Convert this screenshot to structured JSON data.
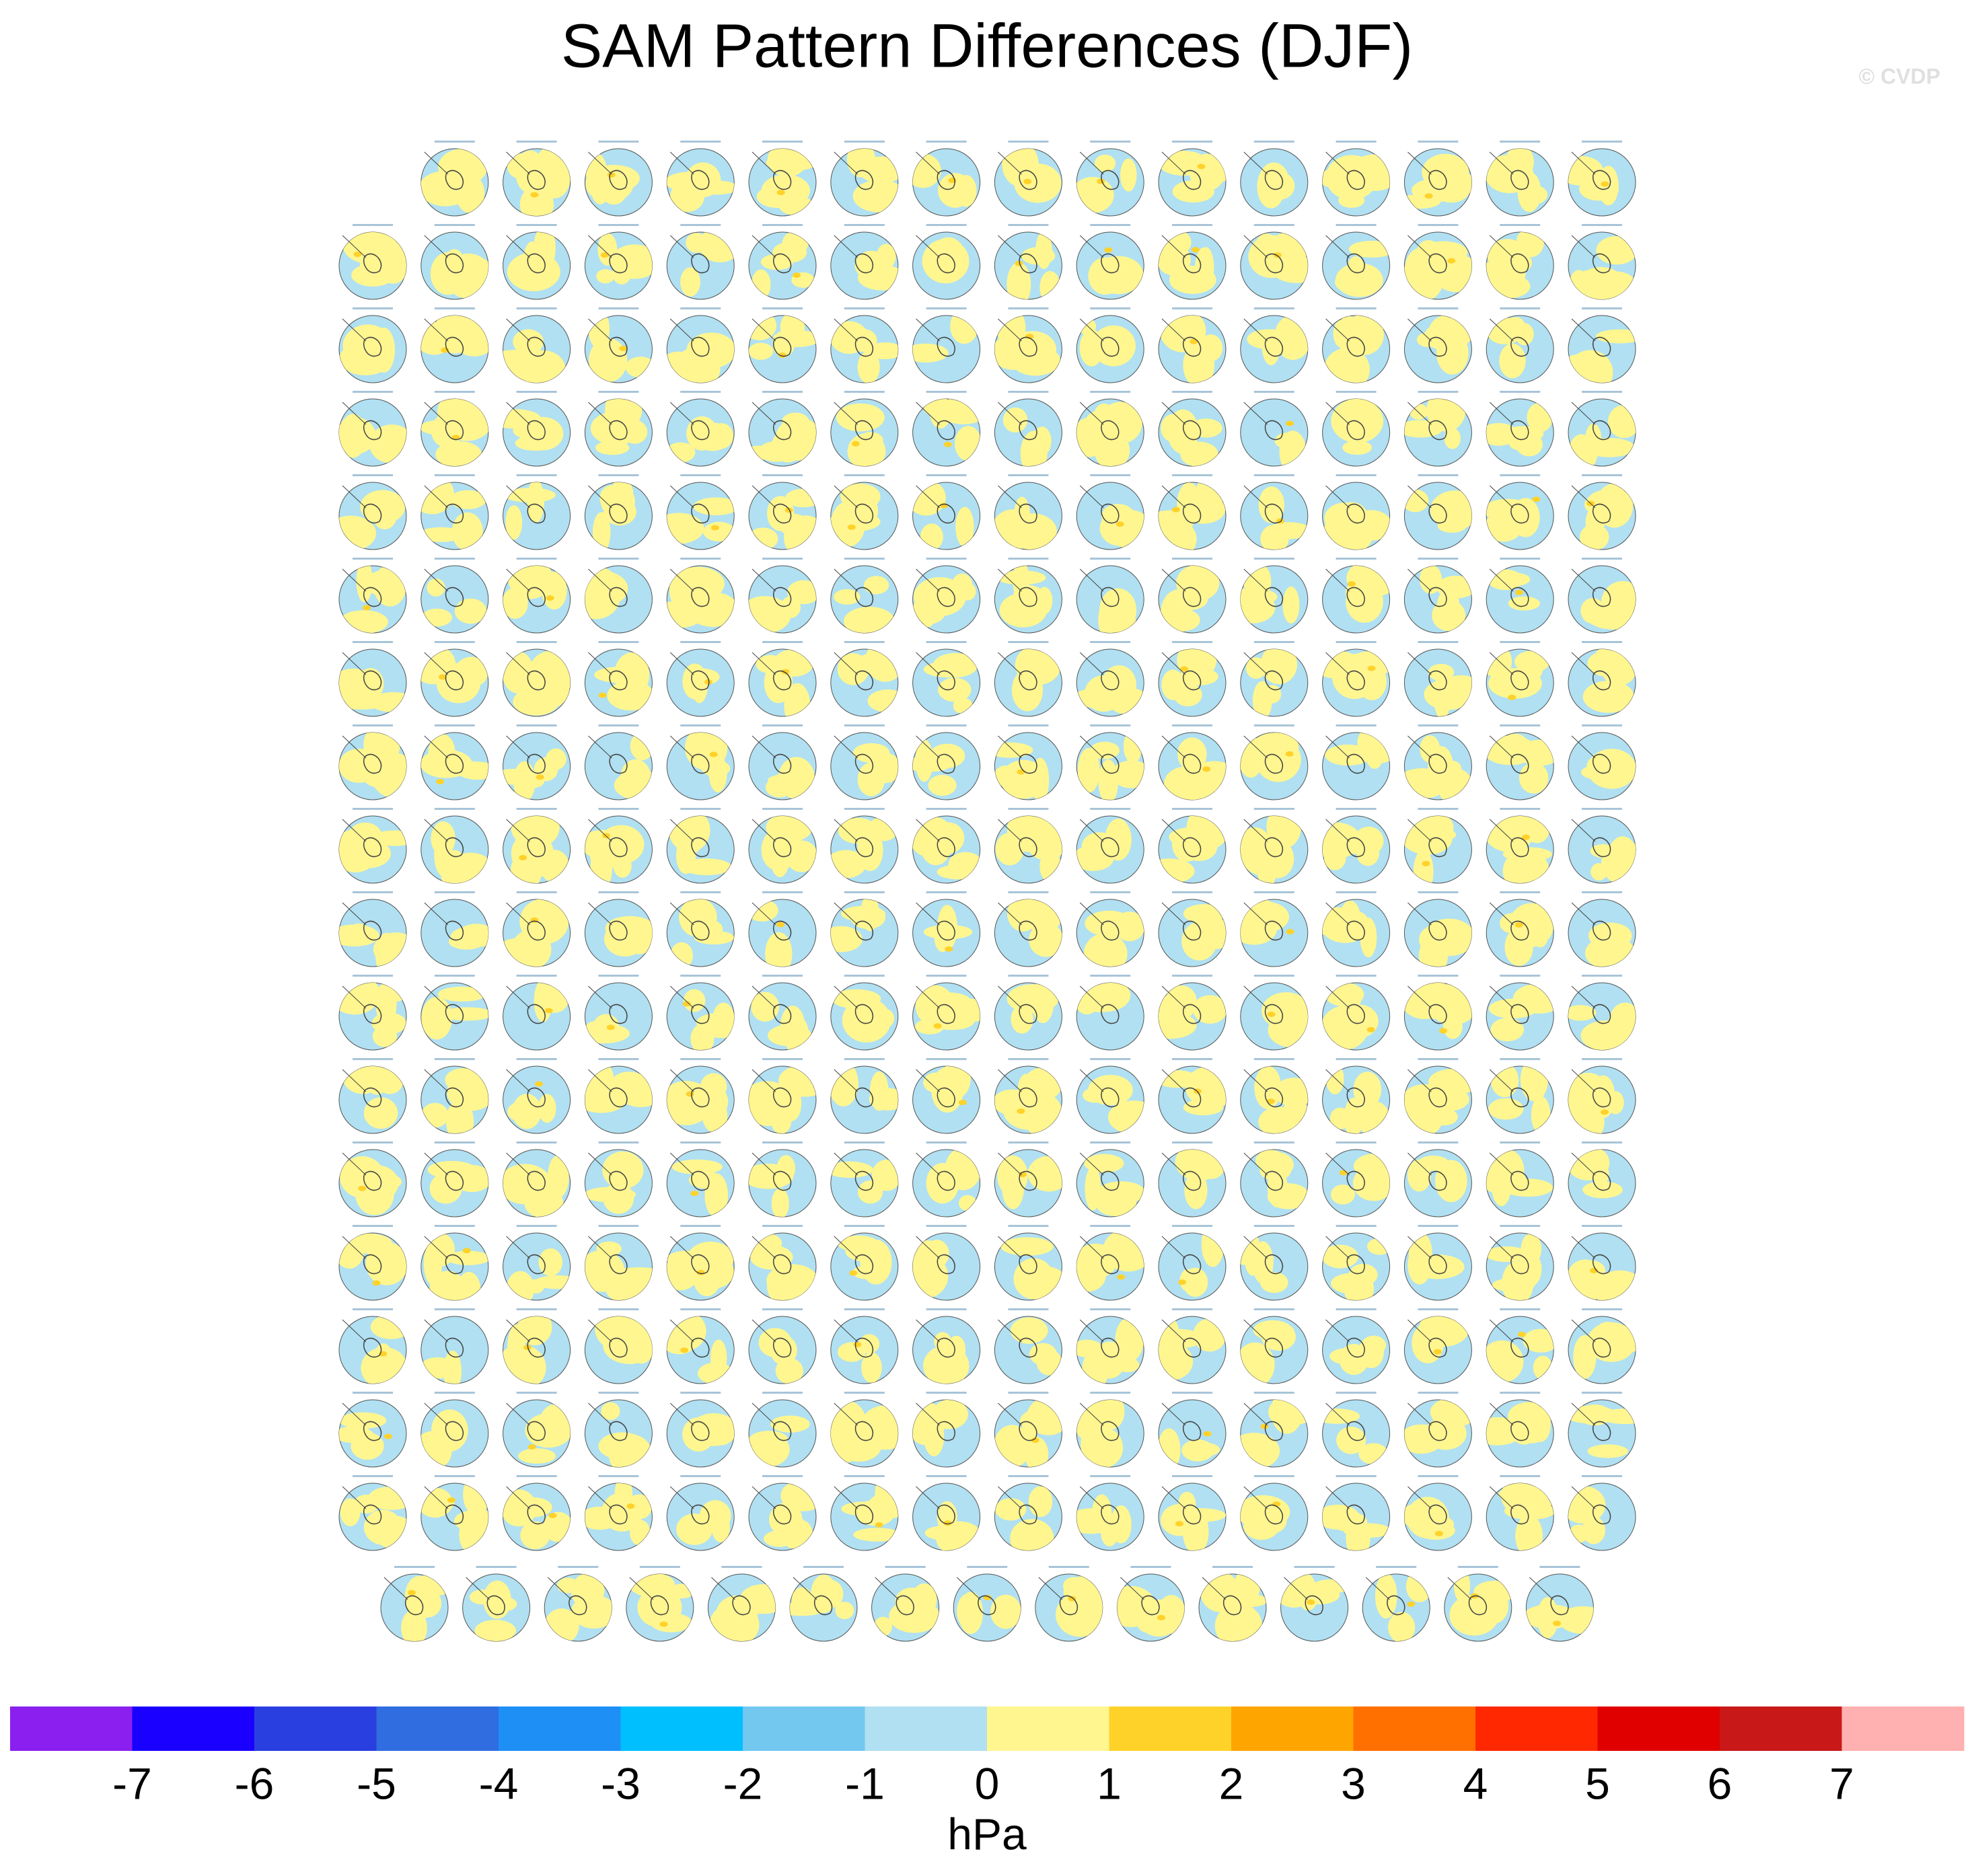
{
  "title": "SAM Pattern Differences (DJF)",
  "watermark": "© CVDP",
  "colorbar": {
    "colors": [
      "#8a1ff0",
      "#1a00ff",
      "#2a3fe0",
      "#2f6de0",
      "#1e8ff5",
      "#00bfff",
      "#73c8f0",
      "#b0e0f2",
      "#fff68f",
      "#ffd22a",
      "#ffa500",
      "#ff7000",
      "#ff2800",
      "#e00000",
      "#c81818",
      "#ffb0b0"
    ],
    "ticks": [
      -7,
      -6,
      -5,
      -4,
      -3,
      -2,
      -1,
      0,
      1,
      2,
      3,
      4,
      5,
      6,
      7
    ],
    "label": "hPa"
  }
}
